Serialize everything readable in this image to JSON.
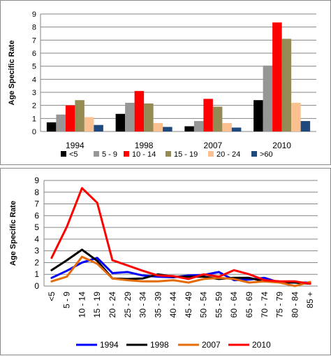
{
  "chart_data": [
    {
      "type": "bar",
      "ylabel": "Age Specific Rate",
      "ylim": [
        0,
        9
      ],
      "yticks": [
        0,
        1,
        2,
        3,
        4,
        5,
        6,
        7,
        8,
        9
      ],
      "grid": true,
      "legend_position": "bottom",
      "categories": [
        "1994",
        "1998",
        "2007",
        "2010"
      ],
      "series": [
        {
          "name": "<5",
          "color": "#000000",
          "values": [
            0.7,
            1.35,
            0.4,
            2.4
          ]
        },
        {
          "name": "5 - 9",
          "color": "#969696",
          "values": [
            1.3,
            2.2,
            0.8,
            5.05
          ]
        },
        {
          "name": "10 - 14",
          "color": "#ff0000",
          "values": [
            2.0,
            3.1,
            2.5,
            8.35
          ]
        },
        {
          "name": "15 - 19",
          "color": "#948a54",
          "values": [
            2.4,
            2.15,
            1.9,
            7.1
          ]
        },
        {
          "name": "20 - 24",
          "color": "#fac090",
          "values": [
            1.1,
            0.65,
            0.65,
            2.2
          ]
        },
        {
          "name": ">60",
          "color": "#1f497d",
          "values": [
            0.5,
            0.35,
            0.3,
            0.8
          ]
        }
      ]
    },
    {
      "type": "line",
      "ylabel": "Age Specific Rate",
      "ylim": [
        0,
        9
      ],
      "yticks": [
        0,
        1,
        2,
        3,
        4,
        5,
        6,
        7,
        8,
        9
      ],
      "grid": true,
      "legend_position": "bottom",
      "categories": [
        "<5",
        "5 - 9",
        "10 - 14",
        "15 - 19",
        "20 - 24",
        "25 - 29",
        "30 - 34",
        "35 - 39",
        "40 - 44",
        "45 - 49",
        "50 - 54",
        "55 - 59",
        "60 - 64",
        "65 - 69",
        "70 - 74",
        "75 - 79",
        "80 - 84",
        "85 +"
      ],
      "series": [
        {
          "name": "1994",
          "color": "#0000ff",
          "values": [
            0.7,
            1.3,
            2.0,
            2.4,
            1.1,
            1.2,
            0.9,
            0.8,
            0.75,
            0.9,
            0.95,
            1.2,
            0.5,
            0.55,
            0.7,
            0.3,
            0.3,
            0.3
          ]
        },
        {
          "name": "1998",
          "color": "#000000",
          "values": [
            1.35,
            2.2,
            3.1,
            2.15,
            0.65,
            0.6,
            0.65,
            1.0,
            0.8,
            0.8,
            0.8,
            0.6,
            0.7,
            0.7,
            0.4,
            0.35,
            0.3,
            0.2
          ]
        },
        {
          "name": "2007",
          "color": "#e36c09",
          "values": [
            0.4,
            0.8,
            2.5,
            1.9,
            0.65,
            0.5,
            0.4,
            0.4,
            0.5,
            0.3,
            0.6,
            0.7,
            0.6,
            0.3,
            0.4,
            0.3,
            0.0,
            0.35
          ]
        },
        {
          "name": "2010",
          "color": "#ff0000",
          "values": [
            2.4,
            5.05,
            8.35,
            7.1,
            2.2,
            1.75,
            1.3,
            0.9,
            0.85,
            0.6,
            1.0,
            0.8,
            1.35,
            1.0,
            0.5,
            0.4,
            0.4,
            0.2
          ]
        }
      ]
    }
  ]
}
